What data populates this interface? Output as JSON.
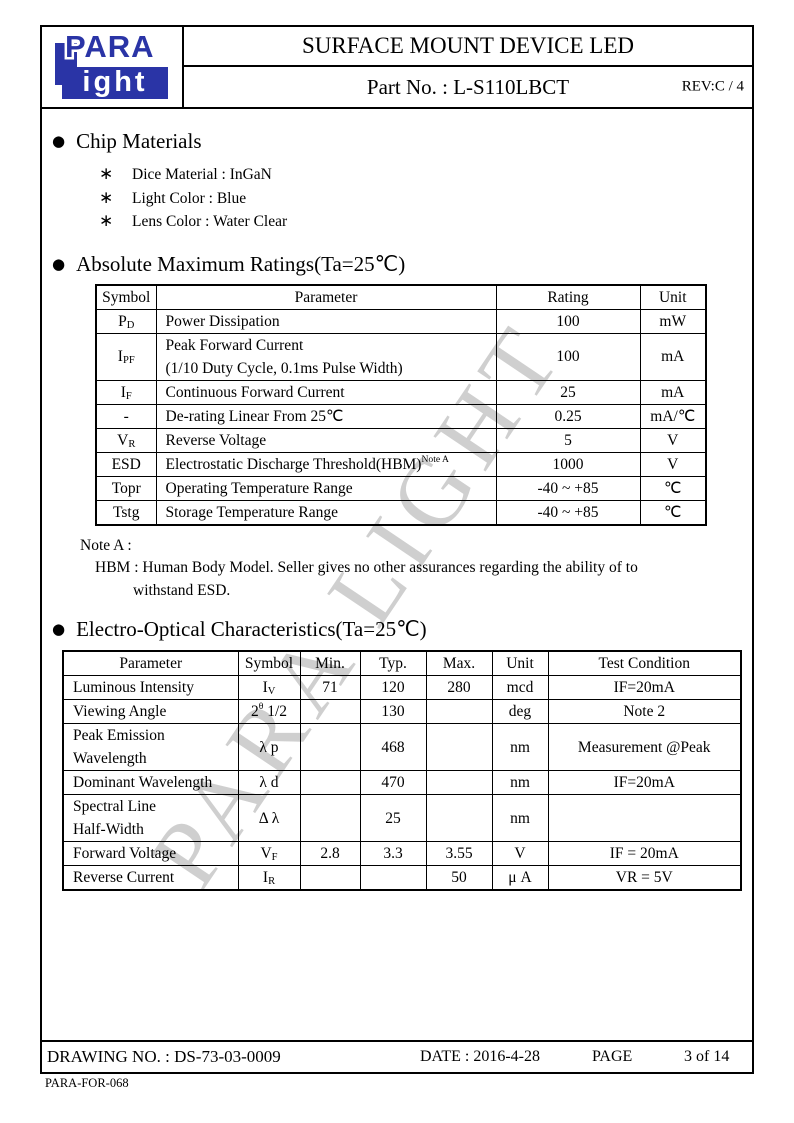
{
  "colors": {
    "logo_blue": "#2a34a6",
    "watermark_gray": "#c7c7c7"
  },
  "watermark_text": "PARA LIGHT",
  "header": {
    "logo_top": "PARA",
    "logo_bottom": "ight",
    "title": "SURFACE MOUNT DEVICE LED",
    "part_no": "Part No. : L-S110LBCT",
    "rev": "REV:C / 4"
  },
  "chip_materials": {
    "bullet": "●",
    "star": "∗",
    "heading": "Chip Materials",
    "items": [
      "Dice Material : InGaN",
      "Light Color : Blue",
      "Lens Color : Water Clear"
    ]
  },
  "abs_max": {
    "bullet": "●",
    "heading": "Absolute Maximum Ratings(Ta=25℃)",
    "table": {
      "headers": [
        "Symbol",
        "Parameter",
        "Rating",
        "Unit"
      ],
      "left_cols": [
        1
      ],
      "rows": [
        [
          {
            "segs": [
              {
                "t": "P"
              },
              {
                "t": "D",
                "s": "sub"
              }
            ]
          },
          "Power Dissipation",
          "100",
          "mW"
        ],
        [
          {
            "segs": [
              {
                "t": "I"
              },
              {
                "t": "PF",
                "s": "sub"
              }
            ]
          },
          {
            "lines": [
              "Peak Forward Current",
              "(1/10 Duty Cycle, 0.1ms Pulse Width)"
            ]
          },
          "100",
          "mA"
        ],
        [
          {
            "segs": [
              {
                "t": "I"
              },
              {
                "t": "F",
                "s": "sub"
              }
            ]
          },
          "Continuous Forward Current",
          "25",
          "mA"
        ],
        [
          "-",
          "De-rating Linear From 25℃",
          "0.25",
          "mA/℃"
        ],
        [
          {
            "segs": [
              {
                "t": "V"
              },
              {
                "t": "R",
                "s": "sub"
              }
            ]
          },
          "Reverse Voltage",
          "5",
          "V"
        ],
        [
          "ESD",
          {
            "segs": [
              {
                "t": "Electrostatic Discharge Threshold(HBM)"
              },
              {
                "t": "Note A",
                "s": "sup"
              }
            ]
          },
          "1000",
          "V"
        ],
        [
          "Topr",
          "Operating Temperature Range",
          "-40 ~ +85",
          "℃"
        ],
        [
          "Tstg",
          "Storage Temperature Range",
          "-40 ~ +85",
          "℃"
        ]
      ]
    },
    "notes": [
      "Note A :",
      "HBM : Human Body Model. Seller gives no other assurances regarding the ability of to",
      "withstand ESD."
    ]
  },
  "electro": {
    "bullet": "●",
    "heading": "Electro-Optical Characteristics(Ta=25℃)",
    "table": {
      "headers": [
        "Parameter",
        "Symbol",
        "Min.",
        "Typ.",
        "Max.",
        "Unit",
        "Test Condition"
      ],
      "left_cols": [
        0
      ],
      "rows": [
        [
          "Luminous Intensity",
          {
            "segs": [
              {
                "t": "I"
              },
              {
                "t": "V",
                "s": "sub"
              }
            ]
          },
          "71",
          "120",
          "280",
          "mcd",
          "IF=20mA"
        ],
        [
          "Viewing Angle",
          {
            "segs": [
              {
                "t": "2"
              },
              {
                "t": "θ",
                "s": "sup"
              },
              {
                "t": " 1/2"
              }
            ]
          },
          "",
          "130",
          "",
          "deg",
          "Note 2"
        ],
        [
          {
            "lines": [
              "Peak Emission",
              "Wavelength"
            ]
          },
          "λ p",
          "",
          "468",
          "",
          "nm",
          "Measurement @Peak"
        ],
        [
          "Dominant Wavelength",
          "λ d",
          "",
          "470",
          "",
          "nm",
          "IF=20mA"
        ],
        [
          {
            "lines": [
              "Spectral Line",
              "Half-Width"
            ]
          },
          "Δ λ",
          "",
          "25",
          "",
          "nm",
          ""
        ],
        [
          "Forward Voltage",
          {
            "segs": [
              {
                "t": "V"
              },
              {
                "t": "F",
                "s": "sub"
              }
            ]
          },
          "2.8",
          "3.3",
          "3.55",
          "V",
          "IF = 20mA"
        ],
        [
          "Reverse Current",
          {
            "segs": [
              {
                "t": "I"
              },
              {
                "t": "R",
                "s": "sub"
              }
            ]
          },
          "",
          "",
          "50",
          "μ A",
          "VR = 5V"
        ]
      ]
    }
  },
  "footer": {
    "drawing_no": "DRAWING NO. : DS-73-03-0009",
    "date": "DATE : 2016-4-28",
    "page_label": "PAGE",
    "page_value": "3 of 14",
    "form_code": "PARA-FOR-068"
  }
}
